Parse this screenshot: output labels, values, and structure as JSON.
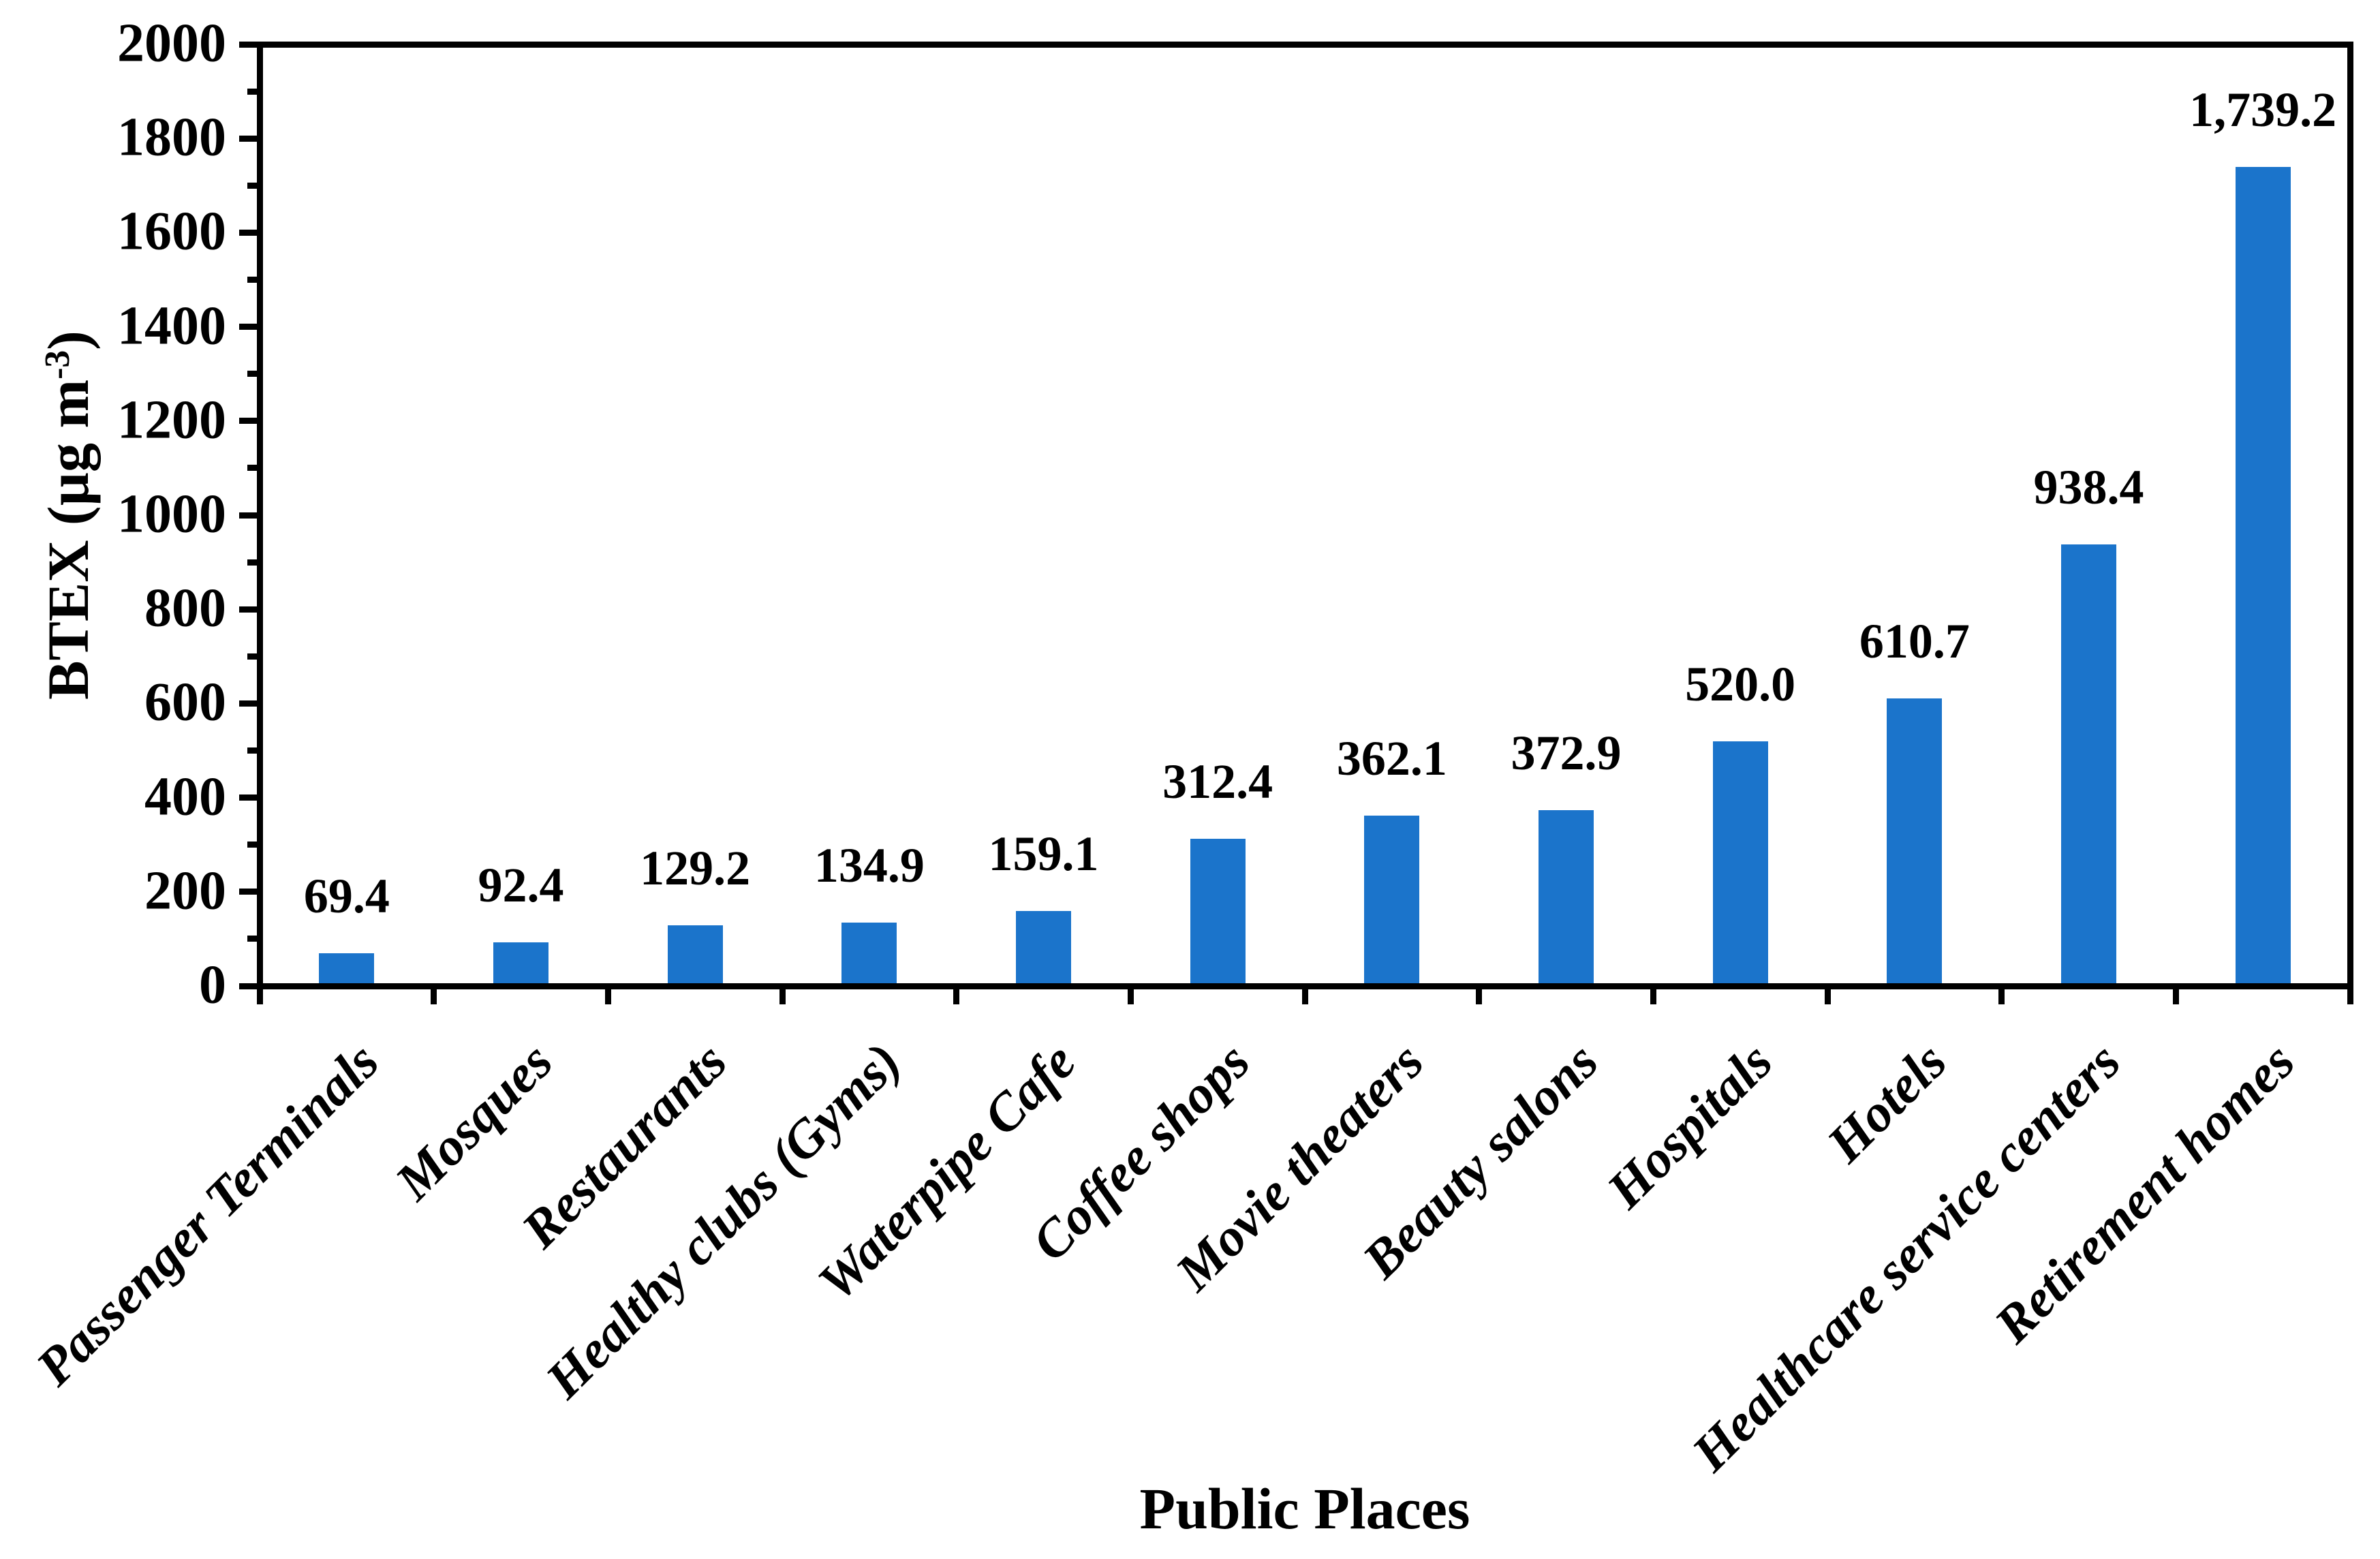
{
  "chart_data": {
    "type": "bar",
    "title": "",
    "xlabel": "Public Places",
    "ylabel": "BTEX (µg m⁻³)",
    "ylabel_parts": {
      "prefix": "BTEX (µg m",
      "superscript": "-3",
      "suffix": ")"
    },
    "categories": [
      "Passenger Terminals",
      "Mosques",
      "Restaurants",
      "Healthy clubs (Gyms)",
      "Waterpipe Cafe",
      "Coffee shops",
      "Movie theaters",
      "Beauty salons",
      "Hospitals",
      "Hotels",
      "Healthcare service centers",
      "Retirement homes"
    ],
    "values": [
      69.4,
      92.4,
      129.2,
      134.9,
      159.1,
      312.4,
      362.1,
      372.9,
      520.0,
      610.7,
      938.4,
      1739.2
    ],
    "value_labels": [
      "69.4",
      "92.4",
      "129.2",
      "134.9",
      "159.1",
      "312.4",
      "362.1",
      "372.9",
      "520.0",
      "610.7",
      "938.4",
      "1,739.2"
    ],
    "ylim": [
      0,
      2000
    ],
    "y_major_step": 200,
    "y_minor_step": 100,
    "y_tick_labels": [
      "0",
      "200",
      "400",
      "600",
      "800",
      "1000",
      "1200",
      "1400",
      "1600",
      "1800",
      "2000"
    ],
    "grid": false,
    "legend": null,
    "bar_color": "#1B74CB",
    "axis_color": "#000000",
    "text_color": "#000000",
    "background": "#FFFFFF"
  }
}
